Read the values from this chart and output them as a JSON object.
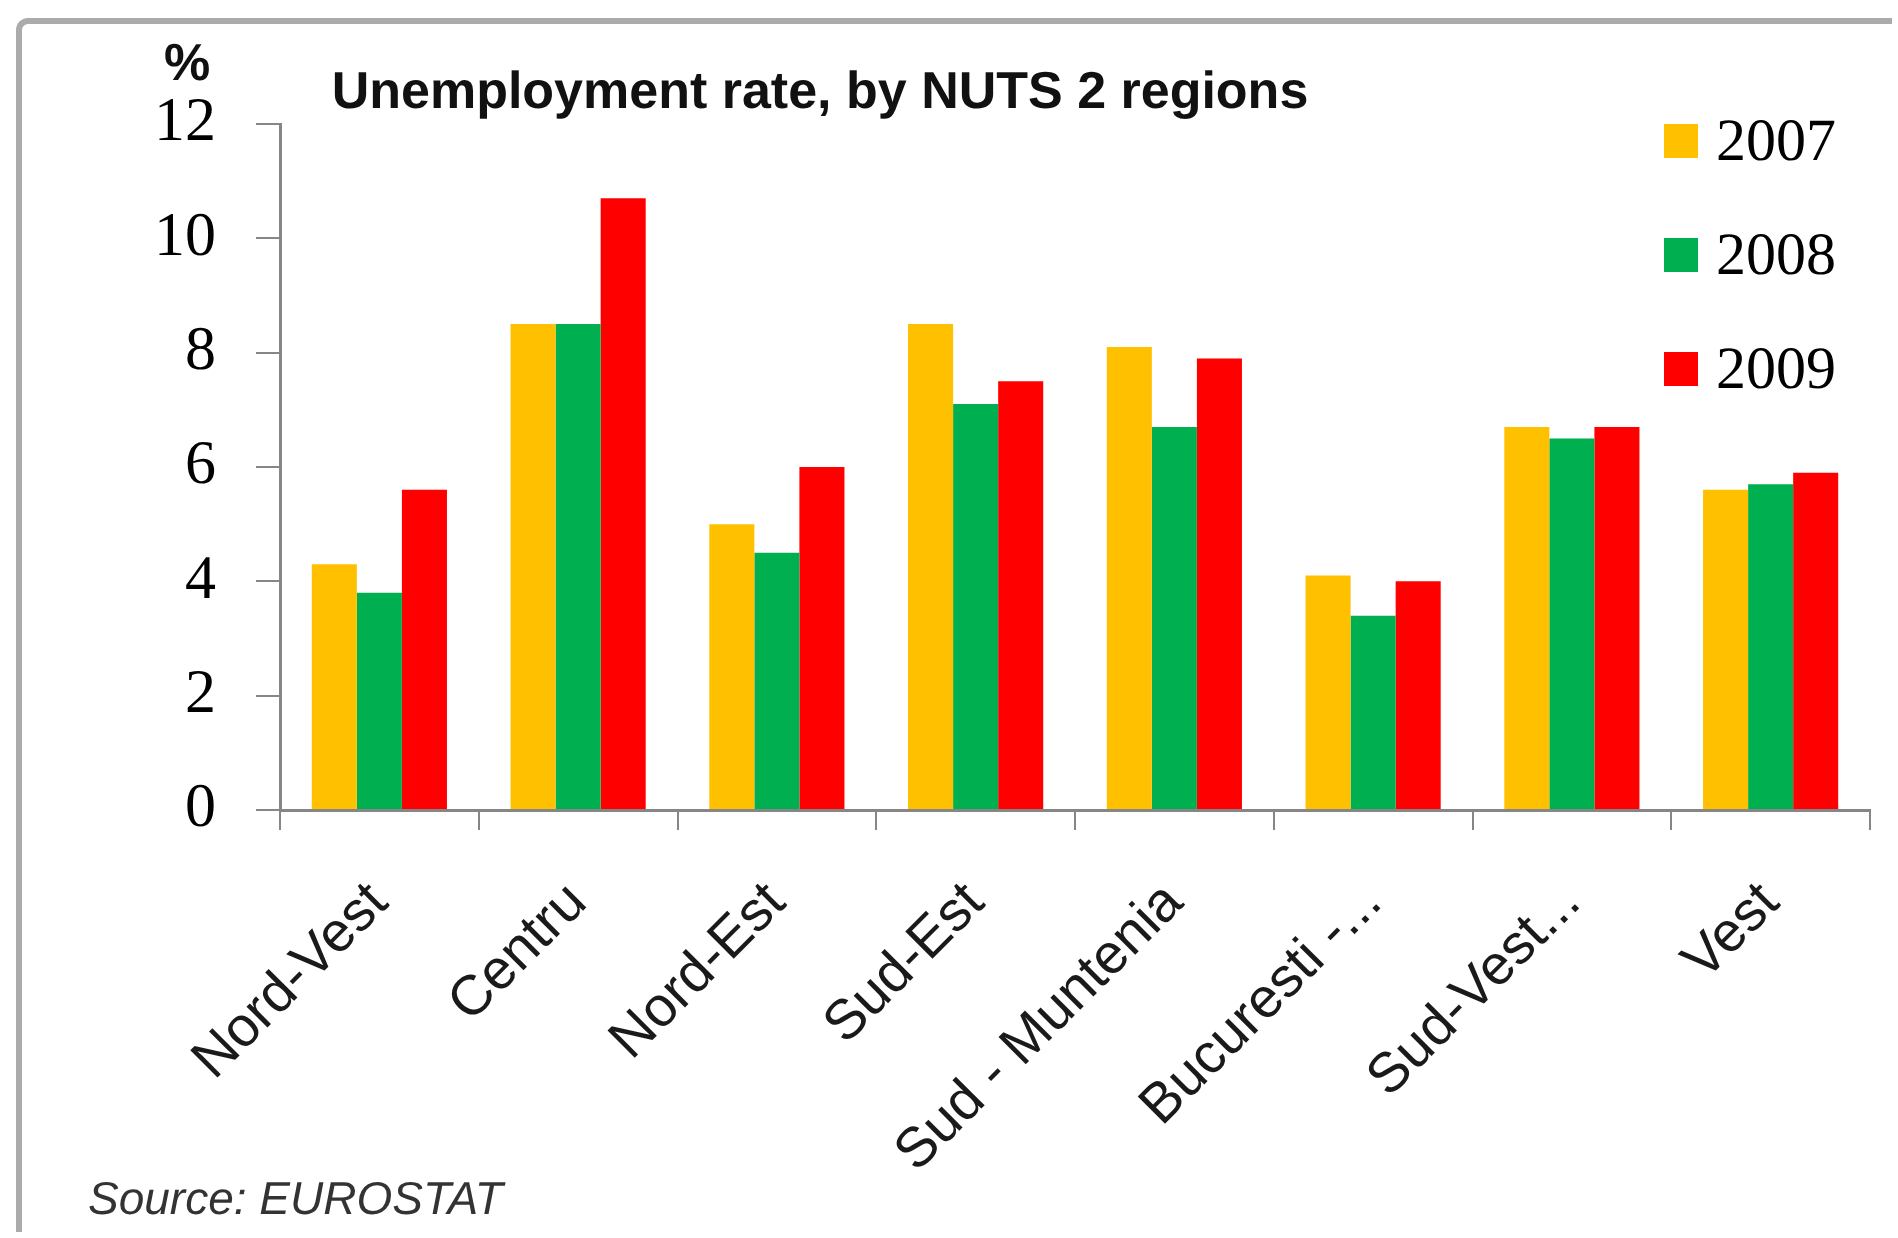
{
  "chart_data": {
    "type": "bar",
    "title": "Unemployment rate, by NUTS 2 regions",
    "ylabel": "%",
    "categories": [
      "Nord-Vest",
      "Centru",
      "Nord-Est",
      "Sud-Est",
      "Sud - Muntenia",
      "Bucuresti -...",
      "Sud-Vest...",
      "Vest"
    ],
    "series": [
      {
        "name": "2007",
        "color": "#ffc000",
        "values": [
          4.3,
          8.5,
          5.0,
          8.5,
          8.1,
          4.1,
          6.7,
          5.6
        ]
      },
      {
        "name": "2008",
        "color": "#00b050",
        "values": [
          3.8,
          8.5,
          4.5,
          7.1,
          6.7,
          3.4,
          6.5,
          5.7
        ]
      },
      {
        "name": "2009",
        "color": "#ff0000",
        "values": [
          5.6,
          10.7,
          6.0,
          7.5,
          7.9,
          4.0,
          6.7,
          5.9
        ]
      }
    ],
    "ylim": [
      0,
      12
    ],
    "yticks": [
      0,
      2,
      4,
      6,
      8,
      10,
      12
    ],
    "grid": false,
    "legend": "top right",
    "annotations": [
      "Source: EUROSTAT"
    ]
  }
}
